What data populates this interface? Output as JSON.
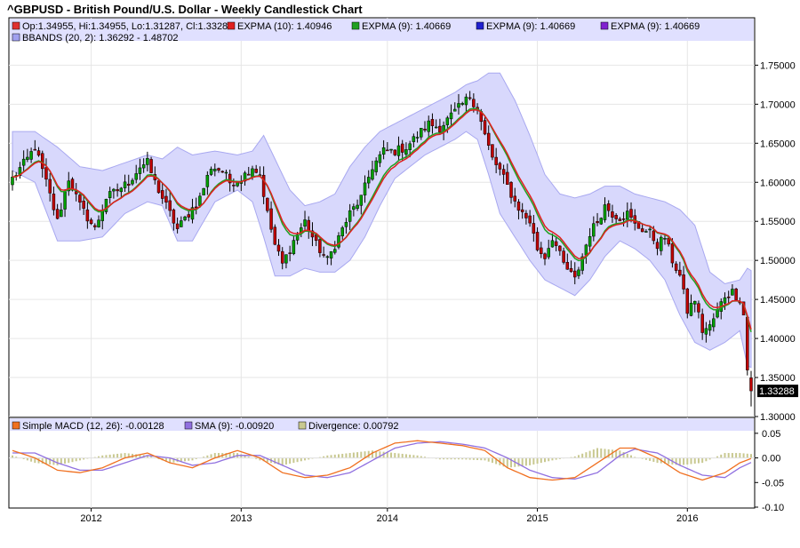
{
  "chart_data": {
    "type": "candlestick",
    "title": "^GBPUSD - British Pound/U.S. Dollar - Weekly Candlestick Chart",
    "main_panel": {
      "ylim": [
        1.3,
        1.78
      ],
      "y_ticks": [
        "1.75000",
        "1.70000",
        "1.65000",
        "1.60000",
        "1.55000",
        "1.50000",
        "1.45000",
        "1.40000",
        "1.35000",
        "1.30000"
      ],
      "y_tick_values": [
        1.75,
        1.7,
        1.65,
        1.6,
        1.55,
        1.5,
        1.45,
        1.4,
        1.35,
        1.3
      ],
      "last_price_label": "1.33288",
      "last_price": 1.33288,
      "legend": [
        {
          "text": "Op:1.34955, Hi:1.34955, Lo:1.31287, Cl:1.33288",
          "color": "#e03030"
        },
        {
          "text": "EXPMA (10): 1.40946",
          "color": "#e02020"
        },
        {
          "text": "EXPMA (9): 1.40669",
          "color": "#20a020"
        },
        {
          "text": "EXPMA (9): 1.40669",
          "color": "#2020d0"
        },
        {
          "text": "EXPMA (9): 1.40669",
          "color": "#8020d0"
        },
        {
          "text": "BBANDS (20, 2): 1.36292 - 1.48702",
          "color": "#a0a0f0"
        }
      ],
      "close_anchors": [
        [
          0,
          1.605
        ],
        [
          4,
          1.63
        ],
        [
          6,
          1.645
        ],
        [
          9,
          1.6
        ],
        [
          12,
          1.55
        ],
        [
          15,
          1.605
        ],
        [
          18,
          1.57
        ],
        [
          22,
          1.54
        ],
        [
          25,
          1.58
        ],
        [
          28,
          1.59
        ],
        [
          31,
          1.6
        ],
        [
          34,
          1.62
        ],
        [
          36,
          1.625
        ],
        [
          38,
          1.6
        ],
        [
          41,
          1.57
        ],
        [
          44,
          1.54
        ],
        [
          47,
          1.56
        ],
        [
          50,
          1.58
        ],
        [
          53,
          1.62
        ],
        [
          56,
          1.615
        ],
        [
          58,
          1.6
        ],
        [
          61,
          1.605
        ],
        [
          64,
          1.62
        ],
        [
          66,
          1.61
        ],
        [
          68,
          1.56
        ],
        [
          70,
          1.52
        ],
        [
          72,
          1.495
        ],
        [
          75,
          1.525
        ],
        [
          78,
          1.55
        ],
        [
          81,
          1.52
        ],
        [
          84,
          1.5
        ],
        [
          87,
          1.53
        ],
        [
          90,
          1.56
        ],
        [
          93,
          1.58
        ],
        [
          96,
          1.62
        ],
        [
          99,
          1.64
        ],
        [
          102,
          1.64
        ],
        [
          105,
          1.645
        ],
        [
          108,
          1.66
        ],
        [
          111,
          1.675
        ],
        [
          114,
          1.67
        ],
        [
          117,
          1.685
        ],
        [
          120,
          1.7
        ],
        [
          122,
          1.71
        ],
        [
          124,
          1.695
        ],
        [
          126,
          1.66
        ],
        [
          128,
          1.63
        ],
        [
          130,
          1.615
        ],
        [
          132,
          1.595
        ],
        [
          134,
          1.575
        ],
        [
          136,
          1.56
        ],
        [
          138,
          1.55
        ],
        [
          140,
          1.515
        ],
        [
          142,
          1.505
        ],
        [
          144,
          1.53
        ],
        [
          147,
          1.495
        ],
        [
          150,
          1.475
        ],
        [
          152,
          1.505
        ],
        [
          154,
          1.535
        ],
        [
          156,
          1.55
        ],
        [
          158,
          1.57
        ],
        [
          160,
          1.56
        ],
        [
          162,
          1.555
        ],
        [
          164,
          1.56
        ],
        [
          166,
          1.545
        ],
        [
          168,
          1.54
        ],
        [
          170,
          1.535
        ],
        [
          172,
          1.52
        ],
        [
          174,
          1.53
        ],
        [
          176,
          1.5
        ],
        [
          178,
          1.48
        ],
        [
          180,
          1.435
        ],
        [
          182,
          1.45
        ],
        [
          184,
          1.41
        ],
        [
          186,
          1.415
        ],
        [
          188,
          1.435
        ],
        [
          190,
          1.455
        ],
        [
          192,
          1.46
        ],
        [
          194,
          1.45
        ],
        [
          195,
          1.43
        ],
        [
          196,
          1.36
        ],
        [
          197,
          1.33288
        ]
      ],
      "bband_anchors": [
        [
          0,
          1.615,
          1.665
        ],
        [
          6,
          1.6,
          1.665
        ],
        [
          12,
          1.525,
          1.645
        ],
        [
          18,
          1.525,
          1.62
        ],
        [
          24,
          1.53,
          1.615
        ],
        [
          30,
          1.56,
          1.625
        ],
        [
          36,
          1.575,
          1.635
        ],
        [
          40,
          1.57,
          1.63
        ],
        [
          44,
          1.525,
          1.645
        ],
        [
          48,
          1.525,
          1.635
        ],
        [
          54,
          1.575,
          1.64
        ],
        [
          60,
          1.59,
          1.635
        ],
        [
          64,
          1.575,
          1.64
        ],
        [
          67,
          1.53,
          1.66
        ],
        [
          70,
          1.48,
          1.63
        ],
        [
          74,
          1.48,
          1.59
        ],
        [
          78,
          1.49,
          1.57
        ],
        [
          82,
          1.485,
          1.575
        ],
        [
          86,
          1.485,
          1.585
        ],
        [
          90,
          1.5,
          1.62
        ],
        [
          94,
          1.53,
          1.645
        ],
        [
          98,
          1.57,
          1.665
        ],
        [
          102,
          1.605,
          1.675
        ],
        [
          106,
          1.62,
          1.685
        ],
        [
          110,
          1.635,
          1.695
        ],
        [
          114,
          1.645,
          1.705
        ],
        [
          118,
          1.655,
          1.715
        ],
        [
          121,
          1.665,
          1.725
        ],
        [
          124,
          1.655,
          1.73
        ],
        [
          127,
          1.61,
          1.74
        ],
        [
          130,
          1.56,
          1.74
        ],
        [
          134,
          1.53,
          1.705
        ],
        [
          138,
          1.5,
          1.66
        ],
        [
          142,
          1.475,
          1.61
        ],
        [
          146,
          1.465,
          1.585
        ],
        [
          150,
          1.455,
          1.58
        ],
        [
          154,
          1.475,
          1.585
        ],
        [
          158,
          1.505,
          1.595
        ],
        [
          162,
          1.525,
          1.595
        ],
        [
          166,
          1.515,
          1.585
        ],
        [
          170,
          1.5,
          1.58
        ],
        [
          174,
          1.475,
          1.575
        ],
        [
          178,
          1.43,
          1.565
        ],
        [
          182,
          1.395,
          1.545
        ],
        [
          186,
          1.385,
          1.485
        ],
        [
          190,
          1.395,
          1.47
        ],
        [
          194,
          1.41,
          1.475
        ],
        [
          196,
          1.365,
          1.49
        ],
        [
          197,
          1.36292,
          1.48702
        ]
      ]
    },
    "macd_panel": {
      "ylim": [
        -0.1,
        0.075
      ],
      "y_ticks": [
        "0.05",
        "0.00",
        "-0.05",
        "-0.10"
      ],
      "y_tick_values": [
        0.05,
        0.0,
        -0.05,
        -0.1
      ],
      "legend": [
        {
          "text": "Simple MACD (12, 26): -0.00128",
          "color": "#f07020"
        },
        {
          "text": "SMA (9): -0.00920",
          "color": "#9070e0"
        },
        {
          "text": "Divergence: 0.00792",
          "color": "#c8c890"
        }
      ],
      "macd_anchors": [
        [
          0,
          0.015
        ],
        [
          6,
          0.0
        ],
        [
          12,
          -0.025
        ],
        [
          18,
          -0.03
        ],
        [
          24,
          -0.02
        ],
        [
          30,
          0.0
        ],
        [
          36,
          0.01
        ],
        [
          42,
          -0.01
        ],
        [
          48,
          -0.02
        ],
        [
          54,
          0.0
        ],
        [
          60,
          0.015
        ],
        [
          66,
          0.0
        ],
        [
          72,
          -0.03
        ],
        [
          78,
          -0.04
        ],
        [
          84,
          -0.035
        ],
        [
          90,
          -0.02
        ],
        [
          96,
          0.01
        ],
        [
          102,
          0.03
        ],
        [
          108,
          0.035
        ],
        [
          114,
          0.03
        ],
        [
          120,
          0.025
        ],
        [
          126,
          0.015
        ],
        [
          132,
          -0.02
        ],
        [
          138,
          -0.04
        ],
        [
          144,
          -0.045
        ],
        [
          150,
          -0.04
        ],
        [
          156,
          -0.01
        ],
        [
          162,
          0.02
        ],
        [
          166,
          0.02
        ],
        [
          172,
          0.0
        ],
        [
          178,
          -0.03
        ],
        [
          184,
          -0.045
        ],
        [
          190,
          -0.03
        ],
        [
          194,
          -0.01
        ],
        [
          197,
          -0.00128
        ]
      ],
      "sma_anchors": [
        [
          0,
          0.01
        ],
        [
          6,
          0.01
        ],
        [
          12,
          -0.01
        ],
        [
          18,
          -0.025
        ],
        [
          24,
          -0.025
        ],
        [
          30,
          -0.01
        ],
        [
          36,
          0.005
        ],
        [
          42,
          0.0
        ],
        [
          48,
          -0.015
        ],
        [
          54,
          -0.01
        ],
        [
          60,
          0.005
        ],
        [
          66,
          0.005
        ],
        [
          72,
          -0.015
        ],
        [
          78,
          -0.035
        ],
        [
          84,
          -0.04
        ],
        [
          90,
          -0.03
        ],
        [
          96,
          -0.005
        ],
        [
          102,
          0.02
        ],
        [
          108,
          0.03
        ],
        [
          114,
          0.033
        ],
        [
          120,
          0.028
        ],
        [
          126,
          0.02
        ],
        [
          132,
          0.0
        ],
        [
          138,
          -0.025
        ],
        [
          144,
          -0.04
        ],
        [
          150,
          -0.043
        ],
        [
          156,
          -0.03
        ],
        [
          162,
          0.005
        ],
        [
          166,
          0.018
        ],
        [
          172,
          0.01
        ],
        [
          178,
          -0.015
        ],
        [
          184,
          -0.035
        ],
        [
          190,
          -0.04
        ],
        [
          194,
          -0.02
        ],
        [
          197,
          -0.0092
        ]
      ]
    },
    "x_axis": {
      "n_bars": 198,
      "year_labels": [
        {
          "label": "2012",
          "bar": 21
        },
        {
          "label": "2013",
          "bar": 61
        },
        {
          "label": "2014",
          "bar": 100
        },
        {
          "label": "2015",
          "bar": 140
        },
        {
          "label": "2016",
          "bar": 180
        }
      ]
    },
    "colors": {
      "bull": "#00a000",
      "bear": "#c00000",
      "band_fill": "#d8d8fc",
      "band_edge": "#a8a8f0",
      "expma10": "#e02020",
      "expma9": "#20a020",
      "macd": "#f07020",
      "sma": "#9070e0",
      "divergence": "#c8c890",
      "legend_bg": "#e0e0ff"
    }
  }
}
